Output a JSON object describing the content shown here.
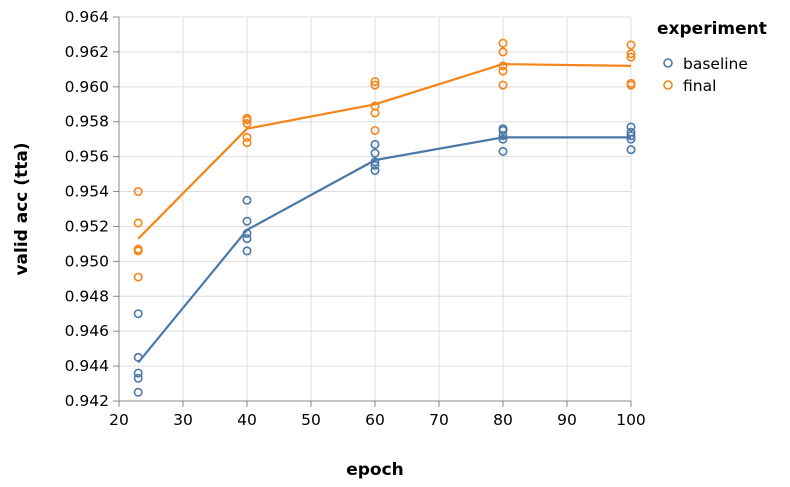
{
  "chart_data": {
    "type": "scatter",
    "title": "",
    "xlabel": "epoch",
    "ylabel": "valid acc (tta)",
    "xlim": [
      20,
      100
    ],
    "ylim": [
      0.942,
      0.964
    ],
    "x_ticks": [
      20,
      30,
      40,
      50,
      60,
      70,
      80,
      90,
      100
    ],
    "y_ticks": [
      0.942,
      0.944,
      0.946,
      0.948,
      0.95,
      0.952,
      0.954,
      0.956,
      0.958,
      0.96,
      0.962,
      0.964
    ],
    "x_tick_labels": [
      "20",
      "30",
      "40",
      "50",
      "60",
      "70",
      "80",
      "90",
      "100"
    ],
    "y_tick_labels": [
      "0.942",
      "0.944",
      "0.946",
      "0.948",
      "0.950",
      "0.952",
      "0.954",
      "0.956",
      "0.958",
      "0.960",
      "0.962",
      "0.964"
    ],
    "grid": true,
    "legend": {
      "title": "experiment",
      "position": "top-right"
    },
    "series": [
      {
        "name": "baseline",
        "color": "#4c78a8",
        "points": [
          {
            "x": 23,
            "y": 0.9425
          },
          {
            "x": 23,
            "y": 0.9433
          },
          {
            "x": 23,
            "y": 0.9436
          },
          {
            "x": 23,
            "y": 0.9445
          },
          {
            "x": 23,
            "y": 0.947
          },
          {
            "x": 40,
            "y": 0.9506
          },
          {
            "x": 40,
            "y": 0.9513
          },
          {
            "x": 40,
            "y": 0.9516
          },
          {
            "x": 40,
            "y": 0.9523
          },
          {
            "x": 40,
            "y": 0.9535
          },
          {
            "x": 60,
            "y": 0.9552
          },
          {
            "x": 60,
            "y": 0.9555
          },
          {
            "x": 60,
            "y": 0.9557
          },
          {
            "x": 60,
            "y": 0.9562
          },
          {
            "x": 60,
            "y": 0.9567
          },
          {
            "x": 80,
            "y": 0.9563
          },
          {
            "x": 80,
            "y": 0.957
          },
          {
            "x": 80,
            "y": 0.9572
          },
          {
            "x": 80,
            "y": 0.9575
          },
          {
            "x": 80,
            "y": 0.9576
          },
          {
            "x": 100,
            "y": 0.9564
          },
          {
            "x": 100,
            "y": 0.957
          },
          {
            "x": 100,
            "y": 0.9572
          },
          {
            "x": 100,
            "y": 0.9574
          },
          {
            "x": 100,
            "y": 0.9577
          }
        ],
        "mean_line": [
          {
            "x": 23,
            "y": 0.9442
          },
          {
            "x": 40,
            "y": 0.9518
          },
          {
            "x": 60,
            "y": 0.9558
          },
          {
            "x": 80,
            "y": 0.9571
          },
          {
            "x": 100,
            "y": 0.9571
          }
        ]
      },
      {
        "name": "final",
        "color": "#f58518",
        "points": [
          {
            "x": 23,
            "y": 0.9491
          },
          {
            "x": 23,
            "y": 0.9506
          },
          {
            "x": 23,
            "y": 0.9507
          },
          {
            "x": 23,
            "y": 0.9522
          },
          {
            "x": 23,
            "y": 0.954
          },
          {
            "x": 40,
            "y": 0.9568
          },
          {
            "x": 40,
            "y": 0.9571
          },
          {
            "x": 40,
            "y": 0.9579
          },
          {
            "x": 40,
            "y": 0.9581
          },
          {
            "x": 40,
            "y": 0.9582
          },
          {
            "x": 60,
            "y": 0.9575
          },
          {
            "x": 60,
            "y": 0.9585
          },
          {
            "x": 60,
            "y": 0.9589
          },
          {
            "x": 60,
            "y": 0.9601
          },
          {
            "x": 60,
            "y": 0.9603
          },
          {
            "x": 80,
            "y": 0.9601
          },
          {
            "x": 80,
            "y": 0.9609
          },
          {
            "x": 80,
            "y": 0.9612
          },
          {
            "x": 80,
            "y": 0.962
          },
          {
            "x": 80,
            "y": 0.9625
          },
          {
            "x": 100,
            "y": 0.9601
          },
          {
            "x": 100,
            "y": 0.9602
          },
          {
            "x": 100,
            "y": 0.9617
          },
          {
            "x": 100,
            "y": 0.9619
          },
          {
            "x": 100,
            "y": 0.9624
          }
        ],
        "mean_line": [
          {
            "x": 23,
            "y": 0.9513
          },
          {
            "x": 40,
            "y": 0.9576
          },
          {
            "x": 60,
            "y": 0.959
          },
          {
            "x": 80,
            "y": 0.9613
          },
          {
            "x": 100,
            "y": 0.9612
          }
        ]
      }
    ]
  }
}
